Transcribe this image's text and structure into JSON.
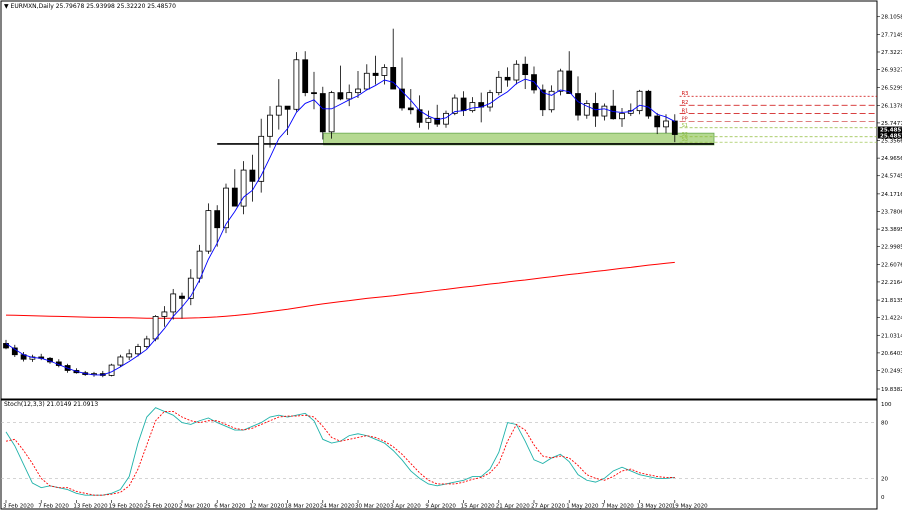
{
  "header": {
    "symbol": "EURMXN,Daily",
    "ohlc": "25.79678 25.93998 25.32220 25.48570"
  },
  "stoch_panel": {
    "title": "Stoch(12,3,3) 21.0149 21.0913"
  },
  "colors": {
    "bull_fill": "#ffffff",
    "bear_fill": "#000000",
    "ma_fast": "#0000ff",
    "ma_slow": "#ff0000",
    "zone_fill": "#9ccc6c",
    "stoch_main": "#20b2aa",
    "stoch_signal": "#ff0000",
    "pivot": "#cc0000",
    "support_line": "#000000"
  },
  "chart_data": [
    {
      "type": "candlestick",
      "title": "EURMXN,Daily",
      "ylim": [
        19.6386,
        28.4105
      ],
      "price_ticks": [
        "28.1058",
        "27.7149",
        "27.3227",
        "26.9327",
        "26.5299",
        "26.1378",
        "25.7477",
        "25.3566",
        "24.9656",
        "24.5745",
        "24.1716",
        "23.7806",
        "23.3895",
        "22.9985",
        "22.6076",
        "22.2164",
        "21.8135",
        "21.4224",
        "21.0314",
        "20.6403",
        "20.2493",
        "19.8382"
      ],
      "current_price_labels": [
        "25.4857",
        "25.4857"
      ],
      "date_labels": [
        "3 Feb 2020",
        "7 Feb 2020",
        "13 Feb 2020",
        "19 Feb 2020",
        "25 Feb 2020",
        "2 Mar 2020",
        "6 Mar 2020",
        "12 Mar 2020",
        "18 Mar 2020",
        "24 Mar 2020",
        "30 Mar 2020",
        "3 Apr 2020",
        "9 Apr 2020",
        "15 Apr 2020",
        "21 Apr 2020",
        "27 Apr 2020",
        "1 May 2020",
        "7 May 2020",
        "13 May 2020",
        "19 May 2020"
      ],
      "date_label_bars": [
        0,
        4,
        8,
        12,
        16,
        20,
        24,
        28,
        32,
        36,
        40,
        44,
        48,
        52,
        56,
        60,
        64,
        68,
        72,
        76
      ],
      "candles": [
        [
          20.85,
          20.93,
          20.72,
          20.75
        ],
        [
          20.75,
          20.82,
          20.55,
          20.6
        ],
        [
          20.6,
          20.66,
          20.45,
          20.5
        ],
        [
          20.5,
          20.6,
          20.44,
          20.55
        ],
        [
          20.55,
          20.62,
          20.48,
          20.52
        ],
        [
          20.52,
          20.55,
          20.4,
          20.44
        ],
        [
          20.44,
          20.5,
          20.32,
          20.36
        ],
        [
          20.36,
          20.4,
          20.2,
          20.25
        ],
        [
          20.25,
          20.3,
          20.18,
          20.2
        ],
        [
          20.2,
          20.24,
          20.13,
          20.16
        ],
        [
          20.16,
          20.22,
          20.11,
          20.18
        ],
        [
          20.18,
          20.24,
          20.1,
          20.14
        ],
        [
          20.14,
          20.4,
          20.12,
          20.37
        ],
        [
          20.37,
          20.6,
          20.33,
          20.55
        ],
        [
          20.55,
          20.72,
          20.48,
          20.62
        ],
        [
          20.62,
          20.84,
          20.56,
          20.78
        ],
        [
          20.78,
          21.02,
          20.74,
          20.95
        ],
        [
          20.95,
          21.48,
          20.9,
          21.45
        ],
        [
          21.45,
          21.68,
          21.22,
          21.55
        ],
        [
          21.55,
          22.06,
          21.38,
          21.95
        ],
        [
          21.9,
          21.98,
          21.4,
          21.85
        ],
        [
          21.85,
          22.5,
          21.7,
          22.3
        ],
        [
          22.3,
          23.04,
          22.2,
          22.9
        ],
        [
          22.9,
          23.96,
          22.84,
          23.8
        ],
        [
          23.8,
          23.92,
          23.0,
          23.42
        ],
        [
          23.42,
          24.4,
          23.3,
          24.3
        ],
        [
          24.3,
          24.72,
          23.9,
          23.9
        ],
        [
          23.9,
          24.9,
          23.72,
          24.7
        ],
        [
          24.7,
          25.04,
          24.0,
          24.45
        ],
        [
          24.45,
          25.84,
          24.2,
          25.45
        ],
        [
          25.45,
          26.12,
          25.2,
          25.92
        ],
        [
          25.92,
          26.72,
          25.6,
          26.12
        ],
        [
          26.12,
          26.05,
          25.48,
          26.05
        ],
        [
          26.05,
          27.32,
          26.0,
          27.15
        ],
        [
          27.15,
          27.34,
          26.34,
          26.42
        ],
        [
          26.42,
          26.88,
          26.05,
          26.4
        ],
        [
          26.4,
          26.55,
          25.38,
          25.55
        ],
        [
          25.55,
          26.46,
          25.4,
          26.42
        ],
        [
          26.42,
          27.02,
          26.25,
          26.28
        ],
        [
          26.28,
          26.6,
          26.12,
          26.42
        ],
        [
          26.42,
          26.9,
          26.3,
          26.5
        ],
        [
          26.5,
          27.05,
          26.5,
          26.85
        ],
        [
          26.85,
          27.24,
          26.6,
          26.8
        ],
        [
          26.8,
          27.05,
          26.6,
          26.98
        ],
        [
          26.98,
          27.84,
          26.5,
          26.5
        ],
        [
          26.5,
          27.2,
          26.02,
          26.08
        ],
        [
          26.08,
          26.5,
          25.94,
          26.04
        ],
        [
          26.04,
          26.36,
          25.64,
          25.76
        ],
        [
          25.76,
          26.02,
          25.6,
          25.85
        ],
        [
          25.85,
          26.15,
          25.66,
          25.72
        ],
        [
          25.72,
          26.02,
          25.64,
          25.96
        ],
        [
          25.96,
          26.38,
          25.92,
          26.3
        ],
        [
          26.3,
          26.45,
          25.9,
          26.02
        ],
        [
          26.02,
          26.32,
          25.98,
          26.2
        ],
        [
          26.2,
          26.42,
          25.76,
          26.1
        ],
        [
          26.1,
          26.48,
          26.0,
          26.42
        ],
        [
          26.42,
          26.9,
          26.36,
          26.76
        ],
        [
          26.76,
          26.98,
          26.55,
          26.7
        ],
        [
          26.7,
          27.14,
          26.6,
          27.05
        ],
        [
          27.05,
          27.22,
          26.5,
          26.82
        ],
        [
          26.82,
          27.0,
          26.4,
          26.48
        ],
        [
          26.48,
          26.6,
          25.9,
          26.04
        ],
        [
          26.04,
          26.58,
          25.98,
          26.45
        ],
        [
          26.45,
          26.95,
          26.36,
          26.9
        ],
        [
          26.9,
          27.34,
          26.4,
          26.4
        ],
        [
          26.4,
          26.78,
          25.8,
          25.92
        ],
        [
          25.92,
          26.25,
          25.84,
          26.18
        ],
        [
          26.18,
          26.42,
          25.66,
          25.9
        ],
        [
          25.9,
          26.18,
          25.8,
          26.12
        ],
        [
          26.12,
          26.48,
          25.82,
          25.84
        ],
        [
          25.84,
          26.08,
          25.66,
          25.96
        ],
        [
          25.96,
          26.18,
          25.9,
          26.02
        ],
        [
          26.02,
          26.48,
          25.94,
          26.45
        ],
        [
          26.45,
          26.48,
          25.84,
          25.9
        ],
        [
          25.9,
          25.97,
          25.5,
          25.66
        ],
        [
          25.66,
          25.94,
          25.52,
          25.79
        ],
        [
          25.79,
          25.94,
          25.32,
          25.49
        ]
      ],
      "ma_fast": [
        20.85,
        20.72,
        20.6,
        20.54,
        20.52,
        20.46,
        20.38,
        20.3,
        20.23,
        20.18,
        20.15,
        20.15,
        20.22,
        20.33,
        20.45,
        20.58,
        20.72,
        20.95,
        21.18,
        21.45,
        21.66,
        21.9,
        22.26,
        22.72,
        23.08,
        23.5,
        23.78,
        24.1,
        24.25,
        24.58,
        24.98,
        25.4,
        25.62,
        25.98,
        26.18,
        26.26,
        26.06,
        26.06,
        26.16,
        26.26,
        26.35,
        26.48,
        26.58,
        26.7,
        26.65,
        26.45,
        26.25,
        26.02,
        25.9,
        25.82,
        25.86,
        26.0,
        26.02,
        26.08,
        26.1,
        26.18,
        26.32,
        26.44,
        26.62,
        26.72,
        26.66,
        26.42,
        26.36,
        26.48,
        26.44,
        26.22,
        26.12,
        26.04,
        26.06,
        26.0,
        25.98,
        26.0,
        26.14,
        26.1,
        25.94,
        25.88,
        25.78
      ],
      "ma_slow": [
        21.48,
        21.475,
        21.47,
        21.465,
        21.46,
        21.455,
        21.45,
        21.445,
        21.44,
        21.435,
        21.43,
        21.43,
        21.425,
        21.42,
        21.42,
        21.415,
        21.41,
        21.41,
        21.41,
        21.41,
        21.41,
        21.415,
        21.42,
        21.43,
        21.44,
        21.455,
        21.47,
        21.49,
        21.51,
        21.535,
        21.56,
        21.585,
        21.61,
        21.64,
        21.67,
        21.7,
        21.73,
        21.755,
        21.78,
        21.8,
        21.825,
        21.85,
        21.87,
        21.89,
        21.91,
        21.935,
        21.96,
        21.98,
        22.005,
        22.03,
        22.05,
        22.075,
        22.1,
        22.12,
        22.145,
        22.17,
        22.19,
        22.215,
        22.24,
        22.26,
        22.285,
        22.31,
        22.33,
        22.355,
        22.38,
        22.4,
        22.425,
        22.45,
        22.47,
        22.495,
        22.52,
        22.54,
        22.565,
        22.59,
        22.61,
        22.63,
        22.65
      ],
      "support_line": 25.28,
      "support_zone": [
        25.26,
        25.52
      ],
      "pivot_levels": [
        {
          "label": "R3",
          "value": 26.34
        },
        {
          "label": "R2",
          "value": 26.14
        },
        {
          "label": "R1",
          "value": 25.96
        },
        {
          "label": "PP",
          "value": 25.78
        },
        {
          "label": "S1",
          "value": 25.64
        },
        {
          "label": "S2",
          "value": 25.44
        },
        {
          "label": "S3",
          "value": 25.32
        }
      ]
    },
    {
      "type": "line",
      "title": "Stoch(12,3,3) 21.0149 21.0913",
      "ylim": [
        0,
        100
      ],
      "y_ticks": [
        "100",
        "80",
        "20",
        "0"
      ],
      "levels": [
        80,
        20
      ],
      "series": [
        {
          "name": "Main",
          "values": [
            70,
            55,
            35,
            15,
            10,
            12,
            10,
            8,
            4,
            2,
            2,
            2,
            4,
            8,
            22,
            58,
            86,
            96,
            92,
            88,
            80,
            78,
            82,
            85,
            80,
            76,
            72,
            72,
            76,
            80,
            86,
            88,
            86,
            88,
            90,
            82,
            62,
            58,
            60,
            66,
            68,
            66,
            62,
            58,
            50,
            40,
            28,
            20,
            14,
            12,
            14,
            16,
            18,
            22,
            22,
            30,
            48,
            80,
            78,
            60,
            40,
            36,
            42,
            46,
            38,
            24,
            18,
            16,
            20,
            28,
            32,
            28,
            24,
            22,
            20,
            20,
            21
          ]
        },
        {
          "name": "Signal",
          "values": [
            60,
            62,
            50,
            36,
            20,
            12,
            10,
            10,
            6,
            4,
            2,
            2,
            3,
            5,
            12,
            30,
            56,
            82,
            92,
            92,
            86,
            82,
            80,
            82,
            82,
            78,
            74,
            72,
            74,
            78,
            82,
            86,
            87,
            87,
            88,
            86,
            76,
            64,
            60,
            62,
            64,
            66,
            64,
            60,
            54,
            46,
            36,
            26,
            18,
            14,
            14,
            14,
            16,
            19,
            21,
            26,
            36,
            60,
            78,
            72,
            56,
            44,
            42,
            44,
            42,
            34,
            24,
            20,
            18,
            22,
            28,
            30,
            26,
            24,
            22,
            21,
            21
          ]
        }
      ]
    }
  ]
}
